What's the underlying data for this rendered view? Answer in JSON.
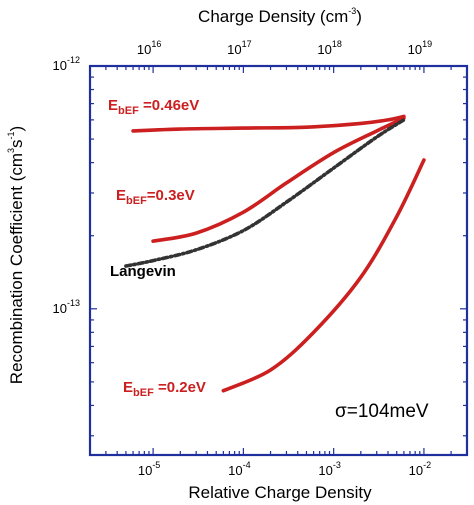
{
  "chart_data": {
    "type": "line",
    "title": "",
    "sigma_label": "σ=104meV",
    "xlabel": "Relative Charge Density",
    "x_top_label_base": "Charge Density (cm",
    "x_top_label_sup": "-3",
    "x_top_label_end": ")",
    "ylabel_base": "Recombination Coefficient (cm",
    "ylabel_sup1": "3",
    "ylabel_mid": "s",
    "ylabel_sup2": "-1",
    "ylabel_end": ")",
    "x_scale": "log",
    "y_scale": "log",
    "xlim": [
      2e-06,
      0.03
    ],
    "ylim": [
      2.5e-14,
      1e-12
    ],
    "x_ticks": [
      {
        "value": 1e-05,
        "base": "10",
        "exp": "-5"
      },
      {
        "value": 0.0001,
        "base": "10",
        "exp": "-4"
      },
      {
        "value": 0.001,
        "base": "10",
        "exp": "-3"
      },
      {
        "value": 0.01,
        "base": "10",
        "exp": "-2"
      }
    ],
    "x_top_ticks": [
      {
        "value": 1e-05,
        "base": "10",
        "exp": "16"
      },
      {
        "value": 0.0001,
        "base": "10",
        "exp": "17"
      },
      {
        "value": 0.001,
        "base": "10",
        "exp": "18"
      },
      {
        "value": 0.01,
        "base": "10",
        "exp": "19"
      }
    ],
    "y_ticks": [
      {
        "value": 1e-13,
        "base": "10",
        "exp": "-13"
      },
      {
        "value": 1e-12,
        "base": "10",
        "exp": "-12"
      }
    ],
    "grid": false,
    "series": [
      {
        "label_base": "E",
        "label_sub": "bEF",
        "label_rest": " =0.46eV",
        "color": "#cc1f1f",
        "style": "solid",
        "x": [
          6e-06,
          2e-05,
          0.0001,
          0.0005,
          0.002,
          0.004,
          0.006
        ],
        "y": [
          5.4e-13,
          5.5e-13,
          5.55e-13,
          5.6e-13,
          5.8e-13,
          6e-13,
          6.2e-13
        ]
      },
      {
        "label_base": "E",
        "label_sub": "bEF",
        "label_rest": "=0.3eV",
        "color": "#cc1f1f",
        "style": "solid",
        "x": [
          1e-05,
          3e-05,
          0.0001,
          0.0003,
          0.001,
          0.003,
          0.006
        ],
        "y": [
          1.9e-13,
          2.05e-13,
          2.5e-13,
          3.3e-13,
          4.4e-13,
          5.4e-13,
          6.1e-13
        ]
      },
      {
        "label_base": "E",
        "label_sub": "bEF",
        "label_rest": " =0.2eV",
        "color": "#cc1f1f",
        "style": "solid",
        "x": [
          6e-05,
          0.0002,
          0.0006,
          0.002,
          0.005,
          0.01
        ],
        "y": [
          4.6e-14,
          5.6e-14,
          8e-14,
          1.35e-13,
          2.4e-13,
          4.1e-13
        ]
      },
      {
        "label_base": "Langevin",
        "label_sub": "",
        "label_rest": "",
        "color": "#333333",
        "style": "dashed",
        "x": [
          5e-06,
          1e-05,
          3e-05,
          0.0001,
          0.0003,
          0.001,
          0.003,
          0.006
        ],
        "y": [
          1.5e-13,
          1.58e-13,
          1.75e-13,
          2.1e-13,
          2.75e-13,
          3.8e-13,
          5.1e-13,
          6e-13
        ]
      }
    ]
  }
}
